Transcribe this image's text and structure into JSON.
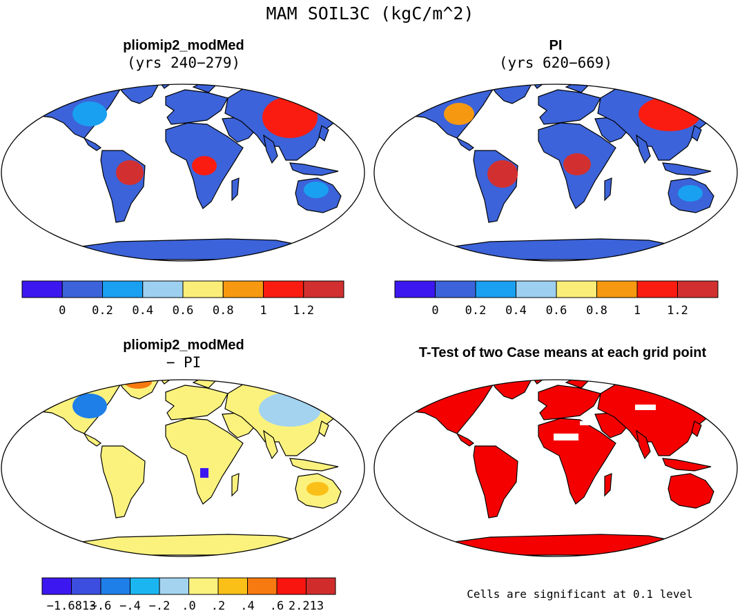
{
  "chart_data": {
    "type": "map",
    "title": "MAM SOIL3C (kgC/m^2)",
    "panels": [
      {
        "title": "pliomip2_modMed",
        "subtitle": "(yrs 240−279)",
        "colorbar": {
          "colors": [
            "#3d17f0",
            "#3c63d9",
            "#1aa0f0",
            "#9dcff0",
            "#fbee78",
            "#f79910",
            "#fa1c10",
            "#d23030"
          ],
          "ticks": [
            "0",
            "0.2",
            "0.4",
            "0.6",
            "0.8",
            "1",
            "1.2"
          ]
        }
      },
      {
        "title": "PI",
        "subtitle": "(yrs 620−669)",
        "colorbar": {
          "colors": [
            "#3d17f0",
            "#3c63d9",
            "#1aa0f0",
            "#9dcff0",
            "#fbee78",
            "#f79910",
            "#fa1c10",
            "#d23030"
          ],
          "ticks": [
            "0",
            "0.2",
            "0.4",
            "0.6",
            "0.8",
            "1",
            "1.2"
          ]
        }
      },
      {
        "title": "pliomip2_modMed",
        "subtitle": "− PI",
        "colorbar": {
          "colors": [
            "#3d17f0",
            "#3c4ee0",
            "#1f7fe8",
            "#1bb6f2",
            "#a3d3ef",
            "#fbf27e",
            "#fbc017",
            "#f77a10",
            "#f8140f",
            "#d02c2c"
          ],
          "ticks": [
            "−1.6813",
            "−.6",
            "−.4",
            "−.2",
            ".0",
            ".2",
            ".4",
            ".6",
            "2.213"
          ]
        }
      },
      {
        "title": "T-Test of two Case means at each grid point",
        "note": "Cells are significant at 0.1 level",
        "colors": [
          "#f40000"
        ]
      }
    ]
  }
}
